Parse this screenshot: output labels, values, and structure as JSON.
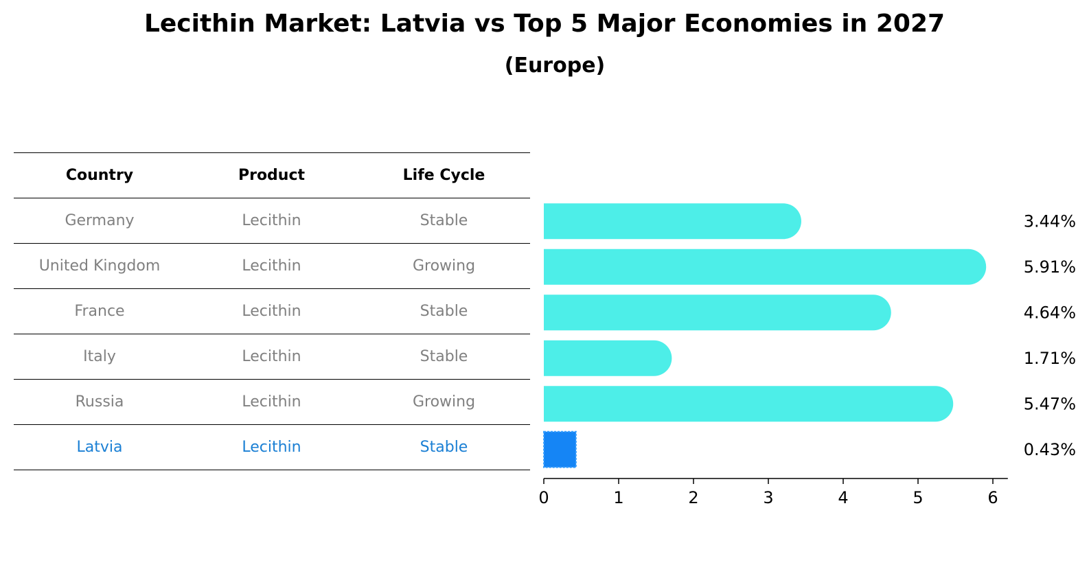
{
  "title": "Lecithin Market: Latvia vs Top 5 Major Economies in 2027",
  "subtitle": "(Europe)",
  "colors": {
    "bar": "#4deee8",
    "highlight_bar": "#1585f5",
    "highlight_text": "#1a7fd4",
    "muted_text": "#808080"
  },
  "table": {
    "headers": [
      "Country",
      "Product",
      "Life Cycle"
    ],
    "rows": [
      {
        "country": "Germany",
        "product": "Lecithin",
        "life_cycle": "Stable",
        "highlight": false
      },
      {
        "country": "United Kingdom",
        "product": "Lecithin",
        "life_cycle": "Growing",
        "highlight": false
      },
      {
        "country": "France",
        "product": "Lecithin",
        "life_cycle": "Stable",
        "highlight": false
      },
      {
        "country": "Italy",
        "product": "Lecithin",
        "life_cycle": "Stable",
        "highlight": false
      },
      {
        "country": "Russia",
        "product": "Lecithin",
        "life_cycle": "Growing",
        "highlight": false
      },
      {
        "country": "Latvia",
        "product": "Lecithin",
        "life_cycle": "Stable",
        "highlight": true
      }
    ]
  },
  "chart_data": {
    "type": "bar",
    "orientation": "horizontal",
    "title": "Lecithin Market: Latvia vs Top 5 Major Economies in 2027",
    "subtitle": "(Europe)",
    "categories": [
      "Germany",
      "United Kingdom",
      "France",
      "Italy",
      "Russia",
      "Latvia"
    ],
    "values": [
      3.44,
      5.91,
      4.64,
      1.71,
      5.47,
      0.43
    ],
    "value_labels": [
      "3.44%",
      "5.91%",
      "4.64%",
      "1.71%",
      "5.47%",
      "0.43%"
    ],
    "highlight_category": "Latvia",
    "xlim": [
      0,
      6.2
    ],
    "xticks": [
      0,
      1,
      2,
      3,
      4,
      5,
      6
    ],
    "xlabel": "",
    "ylabel": "",
    "grid": false,
    "legend": "none"
  }
}
